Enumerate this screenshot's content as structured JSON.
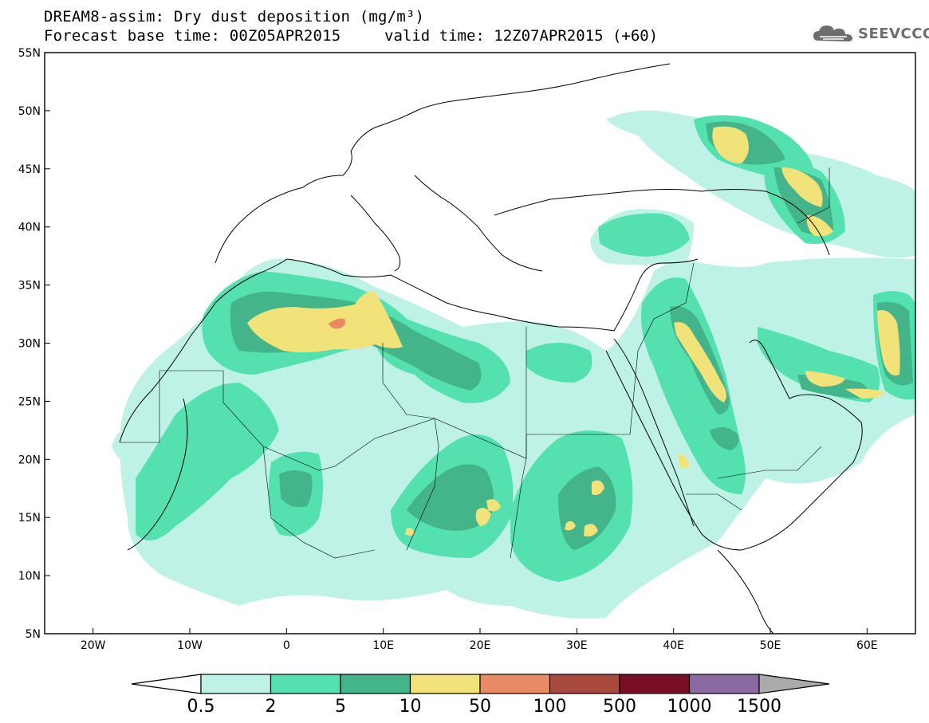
{
  "title": {
    "line1": "DREAM8-assim: Dry dust deposition (mg/m³)",
    "base_time": "Forecast base time: 00Z05APR2015",
    "valid_time": "valid time: 12Z07APR2015 (+60)"
  },
  "logo": {
    "text": "SEEVCCC",
    "icon": "cloud-logo-icon",
    "color": "#6e6e6e"
  },
  "map": {
    "lat_labels": [
      "55N",
      "50N",
      "45N",
      "40N",
      "35N",
      "30N",
      "25N",
      "20N",
      "15N",
      "10N",
      "5N"
    ],
    "lon_labels": [
      "20W",
      "10W",
      "0",
      "10E",
      "20E",
      "30E",
      "40E",
      "50E",
      "60E"
    ],
    "lat_range": [
      5,
      55
    ],
    "lon_range": [
      -25,
      65
    ]
  },
  "colorbar": {
    "labels": [
      "0.5",
      "2",
      "5",
      "10",
      "50",
      "100",
      "500",
      "1000",
      "1500"
    ],
    "colors": [
      "#bff2e6",
      "#55e0b0",
      "#44b58a",
      "#f2e27a",
      "#e98a66",
      "#a84a3e",
      "#7a0e26",
      "#8a6aa0",
      "#aaaaaa"
    ]
  }
}
